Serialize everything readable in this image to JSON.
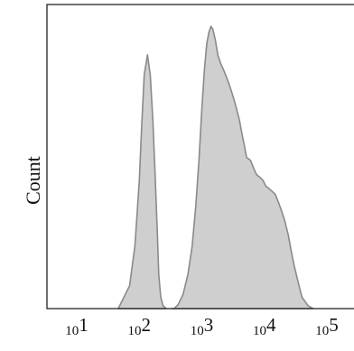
{
  "chart_data": {
    "type": "area",
    "xscale": "log",
    "xlim": [
      10,
      100000
    ],
    "ylim": [
      0,
      1
    ],
    "xticks": [
      {
        "value": 10,
        "base": "10",
        "exp": "1"
      },
      {
        "value": 100,
        "base": "10",
        "exp": "2"
      },
      {
        "value": 1000,
        "base": "10",
        "exp": "3"
      },
      {
        "value": 10000,
        "base": "10",
        "exp": "4"
      },
      {
        "value": 100000,
        "base": "10",
        "exp": "5"
      }
    ],
    "ylabel": "Count",
    "xlabel": "",
    "grid": false,
    "fill_color": "#cfcfcf",
    "line_color": "#8a8a8a",
    "series": [
      {
        "x": [
          46,
          70,
          85,
          100,
          108,
          120,
          135,
          150,
          165,
          180,
          195,
          205,
          220,
          240,
          270
        ],
        "y": [
          0.0,
          0.08,
          0.22,
          0.45,
          0.62,
          0.82,
          0.89,
          0.82,
          0.66,
          0.46,
          0.26,
          0.12,
          0.04,
          0.01,
          0.0
        ]
      },
      {
        "x": [
          330,
          360,
          420,
          500,
          600,
          700,
          800,
          900,
          1000,
          1100,
          1200,
          1300,
          1400,
          1500,
          1650,
          1800,
          2000,
          2200,
          2400,
          2700,
          3000,
          3300,
          3600,
          4000,
          4400,
          4800,
          5200,
          6000,
          6800,
          7500,
          8500,
          9500,
          10500,
          12000,
          13500,
          15000,
          17000,
          19000,
          21000,
          24000,
          27000,
          30000,
          35000,
          40000,
          50000,
          60000
        ],
        "y": [
          0.0,
          0.0,
          0.015,
          0.05,
          0.12,
          0.22,
          0.36,
          0.52,
          0.7,
          0.84,
          0.93,
          0.97,
          0.99,
          0.98,
          0.94,
          0.89,
          0.86,
          0.84,
          0.82,
          0.79,
          0.76,
          0.73,
          0.7,
          0.66,
          0.61,
          0.57,
          0.53,
          0.52,
          0.49,
          0.47,
          0.46,
          0.45,
          0.43,
          0.42,
          0.41,
          0.4,
          0.37,
          0.34,
          0.31,
          0.26,
          0.2,
          0.15,
          0.09,
          0.04,
          0.01,
          0.0
        ]
      }
    ]
  }
}
